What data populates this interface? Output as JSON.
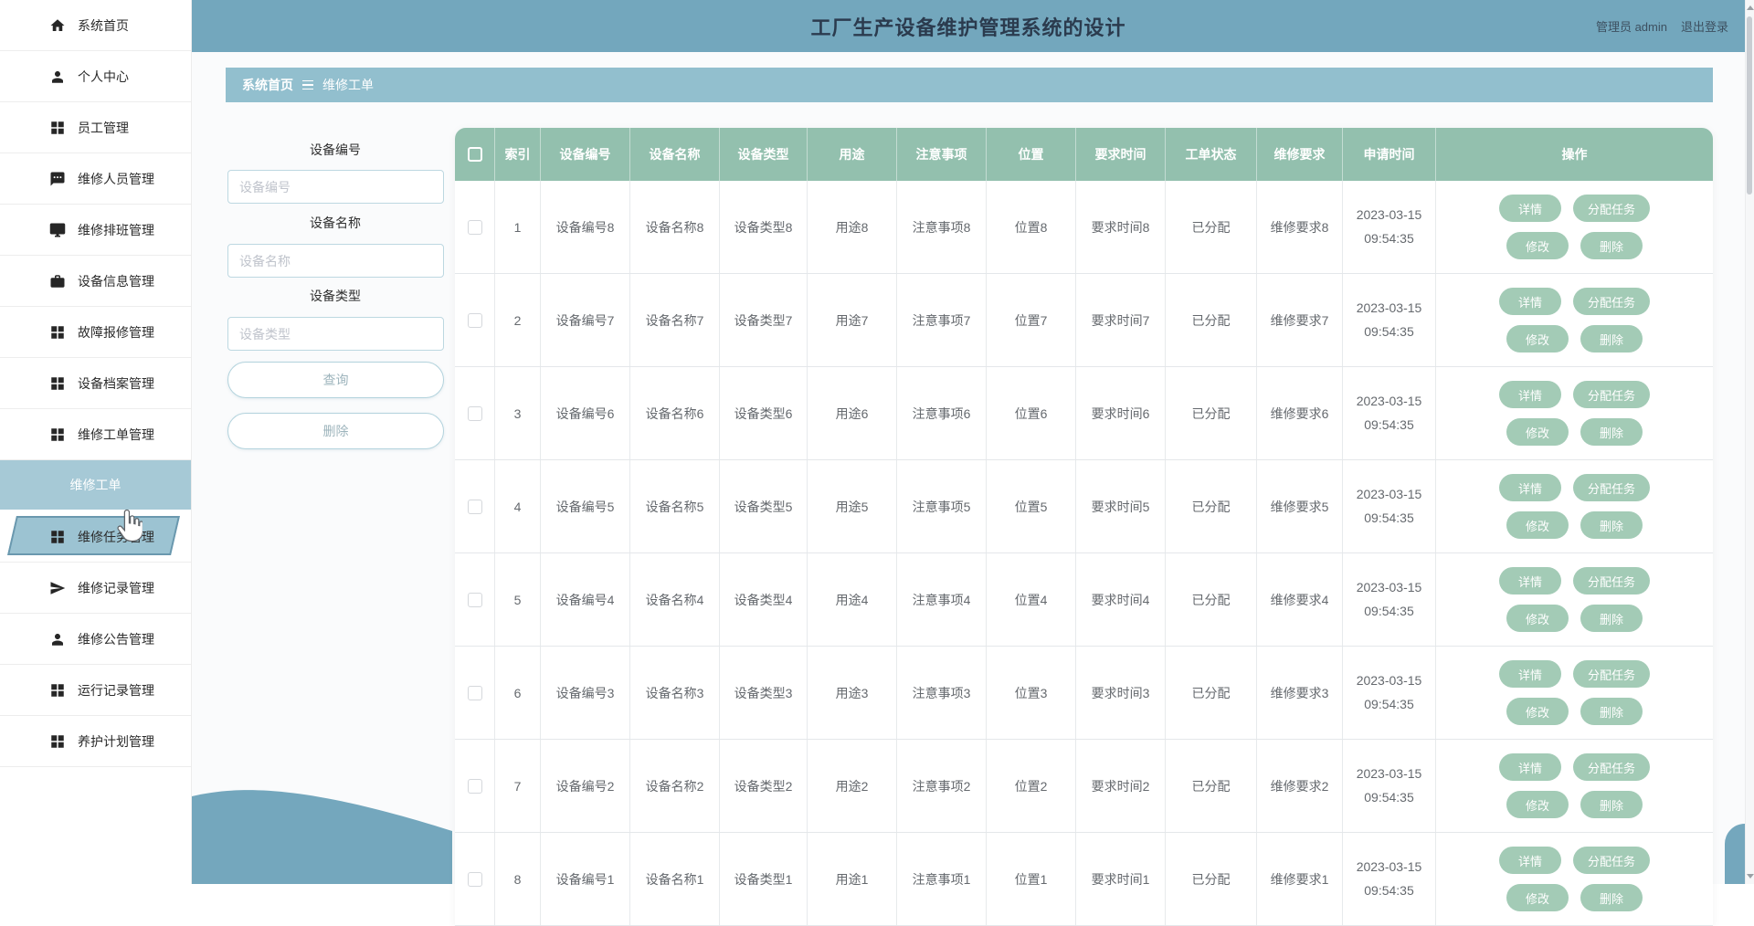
{
  "header": {
    "title": "工厂生产设备维护管理系统的设计",
    "user": "管理员 admin",
    "logout": "退出登录"
  },
  "sidebar": {
    "items": [
      {
        "label": "系统首页",
        "icon": "home-icon"
      },
      {
        "label": "个人中心",
        "icon": "user-icon"
      },
      {
        "label": "员工管理",
        "icon": "grid-icon"
      },
      {
        "label": "维修人员管理",
        "icon": "chat-icon"
      },
      {
        "label": "维修排班管理",
        "icon": "monitor-icon"
      },
      {
        "label": "设备信息管理",
        "icon": "briefcase-icon"
      },
      {
        "label": "故障报修管理",
        "icon": "grid-icon"
      },
      {
        "label": "设备档案管理",
        "icon": "grid-icon"
      },
      {
        "label": "维修工单管理",
        "icon": "grid-icon"
      },
      {
        "label": "维修工单",
        "type": "group-header"
      },
      {
        "label": "维修任务管理",
        "icon": "grid-icon",
        "type": "active"
      },
      {
        "label": "维修记录管理",
        "icon": "send-icon"
      },
      {
        "label": "维修公告管理",
        "icon": "user-icon"
      },
      {
        "label": "运行记录管理",
        "icon": "grid-icon"
      },
      {
        "label": "养护计划管理",
        "icon": "grid-icon"
      }
    ]
  },
  "breadcrumb": {
    "items": [
      "系统首页",
      "维修工单"
    ],
    "separator_icon": "triple-bar-icon"
  },
  "filters": {
    "fields": [
      {
        "label": "设备编号",
        "placeholder": "设备编号"
      },
      {
        "label": "设备名称",
        "placeholder": "设备名称"
      },
      {
        "label": "设备类型",
        "placeholder": "设备类型"
      }
    ],
    "query_label": "查询",
    "delete_label": "删除"
  },
  "table": {
    "columns": [
      "索引",
      "设备编号",
      "设备名称",
      "设备类型",
      "用途",
      "注意事项",
      "位置",
      "要求时间",
      "工单状态",
      "维修要求",
      "申请时间",
      "操作"
    ],
    "rows": [
      [
        "1",
        "设备编号8",
        "设备名称8",
        "设备类型8",
        "用途8",
        "注意事项8",
        "位置8",
        "要求时间8",
        "已分配",
        "维修要求8",
        "2023-03-15 09:54:35"
      ],
      [
        "2",
        "设备编号7",
        "设备名称7",
        "设备类型7",
        "用途7",
        "注意事项7",
        "位置7",
        "要求时间7",
        "已分配",
        "维修要求7",
        "2023-03-15 09:54:35"
      ],
      [
        "3",
        "设备编号6",
        "设备名称6",
        "设备类型6",
        "用途6",
        "注意事项6",
        "位置6",
        "要求时间6",
        "已分配",
        "维修要求6",
        "2023-03-15 09:54:35"
      ],
      [
        "4",
        "设备编号5",
        "设备名称5",
        "设备类型5",
        "用途5",
        "注意事项5",
        "位置5",
        "要求时间5",
        "已分配",
        "维修要求5",
        "2023-03-15 09:54:35"
      ],
      [
        "5",
        "设备编号4",
        "设备名称4",
        "设备类型4",
        "用途4",
        "注意事项4",
        "位置4",
        "要求时间4",
        "已分配",
        "维修要求4",
        "2023-03-15 09:54:35"
      ],
      [
        "6",
        "设备编号3",
        "设备名称3",
        "设备类型3",
        "用途3",
        "注意事项3",
        "位置3",
        "要求时间3",
        "已分配",
        "维修要求3",
        "2023-03-15 09:54:35"
      ],
      [
        "7",
        "设备编号2",
        "设备名称2",
        "设备类型2",
        "用途2",
        "注意事项2",
        "位置2",
        "要求时间2",
        "已分配",
        "维修要求2",
        "2023-03-15 09:54:35"
      ],
      [
        "8",
        "设备编号1",
        "设备名称1",
        "设备类型1",
        "用途1",
        "注意事项1",
        "位置1",
        "要求时间1",
        "已分配",
        "维修要求1",
        "2023-03-15 09:54:35"
      ]
    ],
    "row_actions": [
      "详情",
      "分配任务",
      "修改",
      "删除"
    ]
  },
  "colors": {
    "header-bg": "#73A7BD",
    "breadcrumb-bg": "#92BFCE",
    "table-header-bg": "#93C0AE",
    "action-btn-bg": "#A3CBB6",
    "group-bg": "#A6C9D6",
    "active-bg": "#9CC3D2",
    "active-border": "#6A98AE",
    "wave": "#74A7BD"
  }
}
